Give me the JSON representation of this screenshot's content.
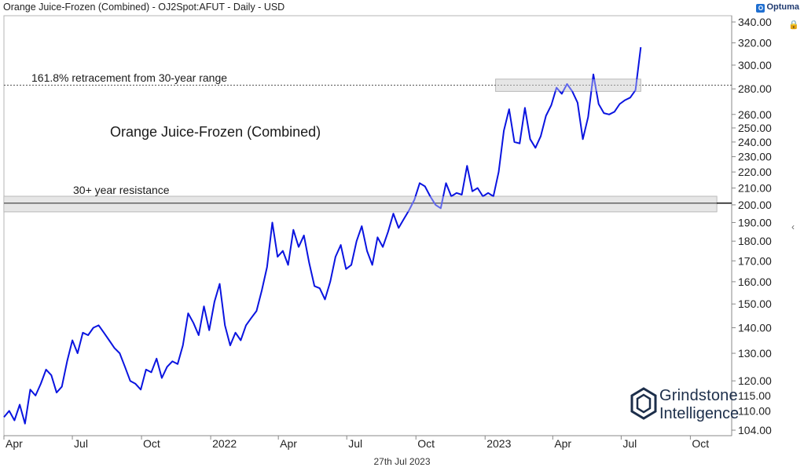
{
  "header": {
    "title": "Orange Juice-Frozen (Combined) - OJ2Spot:AFUT - Daily - USD",
    "brand": "Optuma"
  },
  "footer": {
    "date": "27th Jul 2023"
  },
  "logo": {
    "line1": "Grindstone",
    "line2": "Intelligence"
  },
  "colors": {
    "series": "#0a14e0",
    "band": "#d9d9d9",
    "grid": "#cccccc"
  },
  "chart_data": {
    "type": "line",
    "title": "Orange Juice-Frozen (Combined)",
    "y_scale": "log",
    "ylim": [
      104,
      340
    ],
    "y_ticks": [
      "340.00",
      "320.00",
      "300.00",
      "280.00",
      "260.00",
      "250.00",
      "240.00",
      "230.00",
      "220.00",
      "210.00",
      "200.00",
      "190.00",
      "180.00",
      "170.00",
      "160.00",
      "150.00",
      "140.00",
      "130.00",
      "120.00",
      "115.00",
      "110.00",
      "104.00"
    ],
    "x_ticks": [
      "Apr",
      "Jul",
      "Oct",
      "2022",
      "Apr",
      "Jul",
      "Oct",
      "2023",
      "Apr",
      "Jul",
      "Oct"
    ],
    "annotations": [
      {
        "label": "161.8% retracement from 30-year range",
        "level": 283
      },
      {
        "label": "30+ year resistance",
        "level": 201
      }
    ],
    "bands": [
      {
        "range": [
          196,
          205
        ],
        "from": "Apr",
        "to": "Oct"
      },
      {
        "range": [
          278,
          288
        ],
        "from": "2023",
        "to": "Jul"
      }
    ],
    "series": [
      {
        "x": [
          "2021-04-01",
          "2021-04-08",
          "2021-04-15",
          "2021-04-22",
          "2021-04-29",
          "2021-05-06",
          "2021-05-13",
          "2021-05-20",
          "2021-05-27",
          "2021-06-03",
          "2021-06-10",
          "2021-06-17",
          "2021-06-24",
          "2021-07-01",
          "2021-07-08",
          "2021-07-15",
          "2021-07-22",
          "2021-07-29",
          "2021-08-05",
          "2021-08-12",
          "2021-08-19",
          "2021-08-26",
          "2021-09-02",
          "2021-09-09",
          "2021-09-16",
          "2021-09-23",
          "2021-09-30",
          "2021-10-07",
          "2021-10-14",
          "2021-10-21",
          "2021-10-28",
          "2021-11-04",
          "2021-11-11",
          "2021-11-18",
          "2021-11-25",
          "2021-12-02",
          "2021-12-09",
          "2021-12-16",
          "2021-12-23",
          "2021-12-30",
          "2022-01-06",
          "2022-01-13",
          "2022-01-20",
          "2022-01-27",
          "2022-02-03",
          "2022-02-10",
          "2022-02-17",
          "2022-02-24",
          "2022-03-03",
          "2022-03-10",
          "2022-03-17",
          "2022-03-24",
          "2022-03-31",
          "2022-04-07",
          "2022-04-14",
          "2022-04-21",
          "2022-04-28",
          "2022-05-05",
          "2022-05-12",
          "2022-05-19",
          "2022-05-26",
          "2022-06-02",
          "2022-06-09",
          "2022-06-16",
          "2022-06-23",
          "2022-06-30",
          "2022-07-07",
          "2022-07-14",
          "2022-07-21",
          "2022-07-28",
          "2022-08-04",
          "2022-08-11",
          "2022-08-18",
          "2022-08-25",
          "2022-09-01",
          "2022-09-08",
          "2022-09-15",
          "2022-09-22",
          "2022-09-29",
          "2022-10-06",
          "2022-10-13",
          "2022-10-20",
          "2022-10-27",
          "2022-11-03",
          "2022-11-10",
          "2022-11-17",
          "2022-11-24",
          "2022-12-01",
          "2022-12-08",
          "2022-12-15",
          "2022-12-22",
          "2022-12-29",
          "2023-01-05",
          "2023-01-12",
          "2023-01-19",
          "2023-01-26",
          "2023-02-02",
          "2023-02-09",
          "2023-02-16",
          "2023-02-23",
          "2023-03-02",
          "2023-03-09",
          "2023-03-16",
          "2023-03-23",
          "2023-03-30",
          "2023-04-06",
          "2023-04-13",
          "2023-04-20",
          "2023-04-27",
          "2023-05-04",
          "2023-05-11",
          "2023-05-18",
          "2023-05-25",
          "2023-06-01",
          "2023-06-08",
          "2023-06-15",
          "2023-06-22",
          "2023-06-29",
          "2023-07-06",
          "2023-07-13",
          "2023-07-20",
          "2023-07-27"
        ],
        "y": [
          108,
          110,
          107,
          112,
          106,
          117,
          115,
          119,
          124,
          122,
          116,
          118,
          127,
          135,
          130,
          138,
          137,
          140,
          141,
          138,
          135,
          132,
          130,
          125,
          120,
          119,
          117,
          124,
          123,
          128,
          121,
          125,
          127,
          126,
          133,
          146,
          142,
          137,
          149,
          139,
          151,
          159,
          141,
          133,
          138,
          135,
          141,
          144,
          147,
          156,
          167,
          190,
          172,
          175,
          168,
          186,
          177,
          183,
          169,
          158,
          157,
          152,
          160,
          172,
          178,
          166,
          168,
          180,
          188,
          175,
          168,
          182,
          177,
          185,
          195,
          187,
          192,
          197,
          203,
          213,
          211,
          205,
          200,
          198,
          213,
          205,
          207,
          206,
          224,
          208,
          210,
          205,
          207,
          205,
          220,
          248,
          264,
          240,
          239,
          265,
          242,
          236,
          244,
          259,
          267,
          281,
          276,
          284,
          278,
          269,
          242,
          258,
          292,
          268,
          261,
          260,
          262,
          268,
          271,
          273,
          279,
          316
        ]
      }
    ]
  }
}
